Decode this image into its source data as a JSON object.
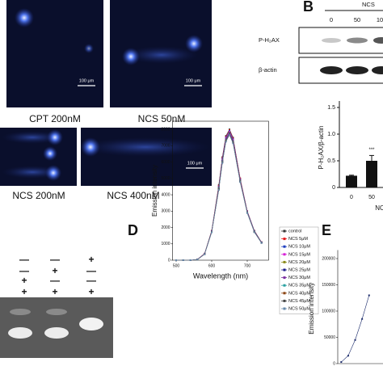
{
  "panel_a": {
    "images": [
      {
        "label": "CPT 200nM",
        "scale_bar": "100 μm"
      },
      {
        "label": "NCS 50nM",
        "scale_bar": "100 μm"
      },
      {
        "label": "NCS 200nM"
      },
      {
        "label": "NCS 400nM",
        "scale_bar": "100 μm"
      }
    ]
  },
  "panel_b": {
    "letter": "B",
    "treatment": "NCS",
    "lanes": [
      "0",
      "50",
      "10"
    ],
    "blots": [
      "P-H₂AX",
      "β-actin"
    ]
  },
  "panel_c": {
    "signs": [
      [
        "—",
        "—",
        "+"
      ],
      [
        "—",
        "+",
        "—"
      ],
      [
        "+",
        "—",
        "—"
      ],
      [
        "+",
        "+",
        "+"
      ]
    ]
  },
  "panel_d": {
    "letter": "D"
  },
  "panel_e": {
    "letter": "E"
  },
  "chart_data": [
    {
      "type": "bar",
      "y_label": "P-H₂AX/β-actin",
      "x_label": "NC",
      "categories": [
        "0",
        "50"
      ],
      "values": [
        0.22,
        0.5
      ],
      "errors": [
        0.01,
        0.1
      ],
      "annotation": "***",
      "color": "#111111",
      "ylim": [
        0,
        1.5
      ],
      "yticks": [
        0,
        0.5,
        {
          "value": 1,
          "label": "1.0"
        },
        1.5
      ]
    },
    {
      "type": "line",
      "x_label": "Wavelength (nm)",
      "y_label": "Emission intensity",
      "x": [
        500,
        520,
        540,
        560,
        580,
        600,
        620,
        630,
        640,
        650,
        660,
        680,
        700,
        720,
        740
      ],
      "xlim": [
        490,
        760
      ],
      "xticks": [
        500,
        600,
        700
      ],
      "ylim": [
        0,
        8500
      ],
      "yticks": [
        0,
        1000,
        2000,
        3000,
        4000,
        5000,
        6000,
        7000,
        8000
      ],
      "legend": "right",
      "series": [
        {
          "name": "control",
          "color": "#333333",
          "values": [
            0,
            0,
            0,
            50,
            400,
            1800,
            4600,
            6300,
            7600,
            8000,
            7500,
            5000,
            3000,
            1800,
            1100
          ]
        },
        {
          "name": "NCS 5μM",
          "color": "#e41a1c",
          "values": [
            0,
            0,
            0,
            50,
            400,
            1800,
            4550,
            6250,
            7550,
            7950,
            7450,
            5000,
            3000,
            1800,
            1100
          ]
        },
        {
          "name": "NCS 10μM",
          "color": "#1f3fbf",
          "values": [
            0,
            0,
            0,
            50,
            390,
            1780,
            4500,
            6200,
            7500,
            7900,
            7400,
            4950,
            2980,
            1790,
            1090
          ]
        },
        {
          "name": "NCS 15μM",
          "color": "#d61fd6",
          "values": [
            0,
            0,
            0,
            50,
            390,
            1770,
            4480,
            6150,
            7450,
            7850,
            7350,
            4930,
            2970,
            1780,
            1090
          ]
        },
        {
          "name": "NCS 20μM",
          "color": "#8a8a1a",
          "values": [
            0,
            0,
            0,
            50,
            380,
            1760,
            4450,
            6100,
            7400,
            7800,
            7300,
            4900,
            2950,
            1770,
            1080
          ]
        },
        {
          "name": "NCS 25μM",
          "color": "#1a1a8a",
          "values": [
            0,
            0,
            0,
            50,
            380,
            1750,
            4420,
            6080,
            7380,
            7780,
            7280,
            4880,
            2940,
            1760,
            1080
          ]
        },
        {
          "name": "NCS 30μM",
          "color": "#7b2fa0",
          "values": [
            0,
            0,
            0,
            50,
            380,
            1740,
            4400,
            6050,
            7350,
            7750,
            7250,
            4860,
            2930,
            1750,
            1070
          ]
        },
        {
          "name": "NCS 35μM",
          "color": "#2aa0a0",
          "values": [
            0,
            0,
            0,
            40,
            370,
            1730,
            4380,
            6020,
            7320,
            7720,
            7220,
            4840,
            2920,
            1740,
            1070
          ]
        },
        {
          "name": "NCS 40μM",
          "color": "#8b4513",
          "values": [
            0,
            0,
            0,
            40,
            370,
            1720,
            4350,
            6000,
            7300,
            7700,
            7200,
            4820,
            2900,
            1730,
            1060
          ]
        },
        {
          "name": "NCS 45μM",
          "color": "#444444",
          "values": [
            0,
            0,
            0,
            40,
            370,
            1710,
            4330,
            5980,
            7280,
            7680,
            7180,
            4800,
            2890,
            1720,
            1060
          ]
        },
        {
          "name": "NCS 50μM",
          "color": "#6688aa",
          "values": [
            0,
            0,
            0,
            40,
            360,
            1700,
            4300,
            5950,
            7250,
            7650,
            7150,
            4780,
            2880,
            1710,
            1050
          ]
        }
      ]
    },
    {
      "type": "line",
      "y_label": "Emission intensity",
      "x": [
        400,
        410,
        420,
        430,
        440
      ],
      "xlim": [
        395,
        460
      ],
      "ylim": [
        0,
        210000
      ],
      "yticks": [
        0,
        50000,
        100000,
        150000,
        200000
      ],
      "series": [
        {
          "color": "#1a2a6a",
          "values": [
            3000,
            15000,
            45000,
            85000,
            130000
          ]
        }
      ]
    }
  ]
}
